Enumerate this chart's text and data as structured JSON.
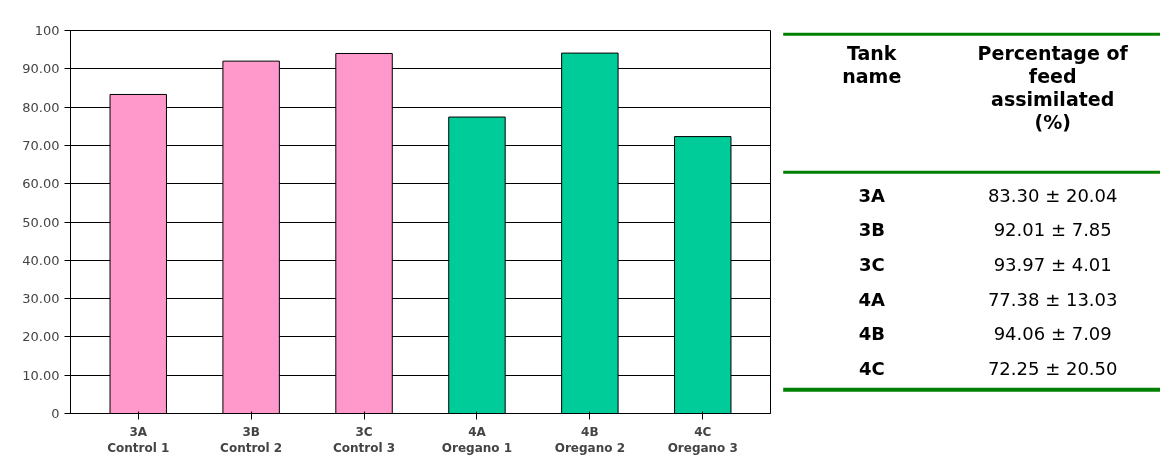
{
  "chart_data": [
    {
      "type": "bar",
      "categories": [
        "3A\nControl 1",
        "3B\nControl 2",
        "3C\nControl 3",
        "4A\nOregano 1",
        "4B\nOregano 2",
        "4C\nOregano 3"
      ],
      "values": [
        83.3,
        92.0,
        94.0,
        77.4,
        94.1,
        72.3
      ],
      "colors": [
        "#ff99cc",
        "#ff99cc",
        "#ff99cc",
        "#00cc99",
        "#00cc99",
        "#00cc99"
      ],
      "ylim": [
        0,
        100
      ],
      "yticks": [
        0,
        {
          "value": 10,
          "label": "10.00"
        },
        {
          "value": 20,
          "label": "20.00"
        },
        {
          "value": 30,
          "label": "30.00"
        },
        {
          "value": 40,
          "label": "40.00"
        },
        {
          "value": 50,
          "label": "50.00"
        },
        {
          "value": 60,
          "label": "60.00"
        },
        {
          "value": 70,
          "label": "70.00"
        },
        {
          "value": 80,
          "label": "80.00"
        },
        {
          "value": 90,
          "label": "90.00"
        },
        100
      ],
      "grid": "y"
    },
    {
      "type": "other",
      "annotations": [
        "Tank name",
        "Percentage of feed assimilated (%)",
        "3A",
        "83.30 ± 20.04",
        "3B",
        "92.01 ± 7.85",
        "3C",
        "93.97 ± 4.01",
        "4A",
        "77.38 ± 13.03",
        "4B",
        "94.06 ± 7.09",
        "4C",
        "72.25 ± 20.50"
      ]
    }
  ]
}
